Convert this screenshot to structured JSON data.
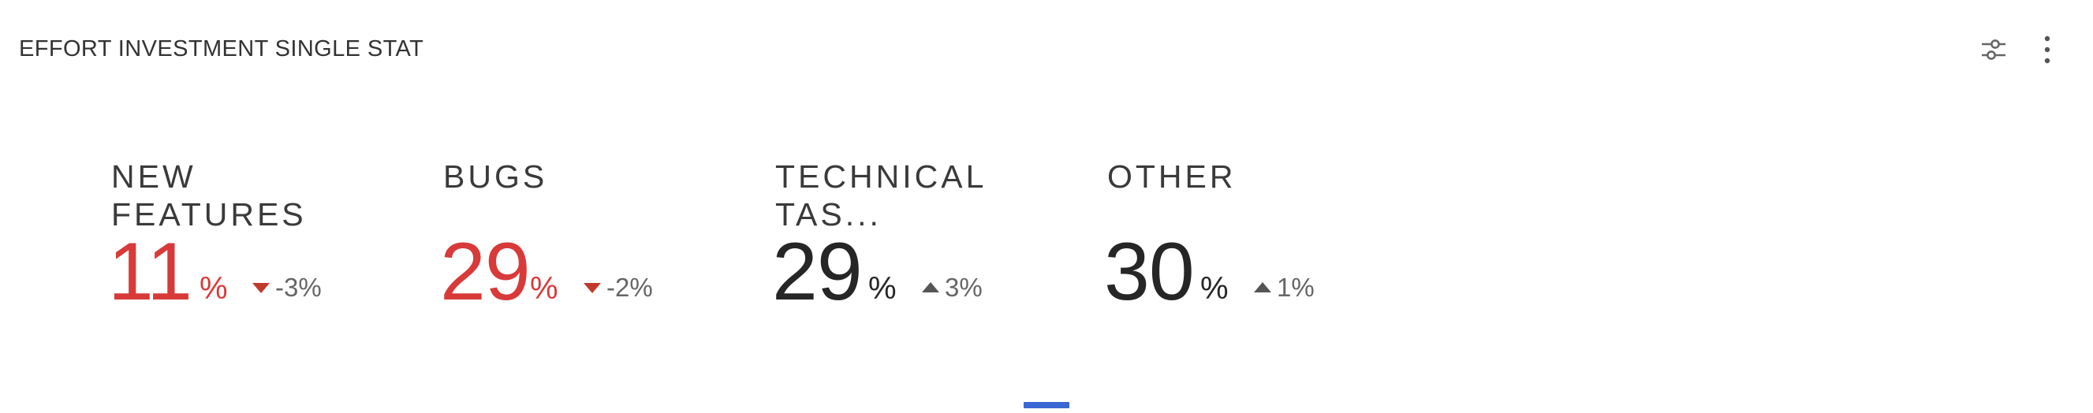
{
  "panel": {
    "title": "EFFORT INVESTMENT SINGLE STAT",
    "tools": {
      "filter_icon": "sliders-icon",
      "more_icon": "vertical-dots-icon"
    }
  },
  "stats": [
    {
      "label": "NEW FEATURES",
      "value": "11",
      "unit": "%",
      "delta": "-3%",
      "trend": "down",
      "value_color": "#d83a3a"
    },
    {
      "label": "BUGS",
      "value": "29",
      "unit": "%",
      "delta": "-2%",
      "trend": "down",
      "value_color": "#d83a3a"
    },
    {
      "label": "TECHNICAL TAS...",
      "value": "29",
      "unit": "%",
      "delta": "3%",
      "trend": "up",
      "value_color": "#262626"
    },
    {
      "label": "OTHER",
      "value": "30",
      "unit": "%",
      "delta": "1%",
      "trend": "up",
      "value_color": "#262626"
    }
  ],
  "colors": {
    "negative": "#d83a3a",
    "neutral_text": "#262626",
    "delta_text": "#666666",
    "down_arrow": "#c0392b",
    "up_arrow": "#555555",
    "page_indicator": "#3a67d2"
  }
}
